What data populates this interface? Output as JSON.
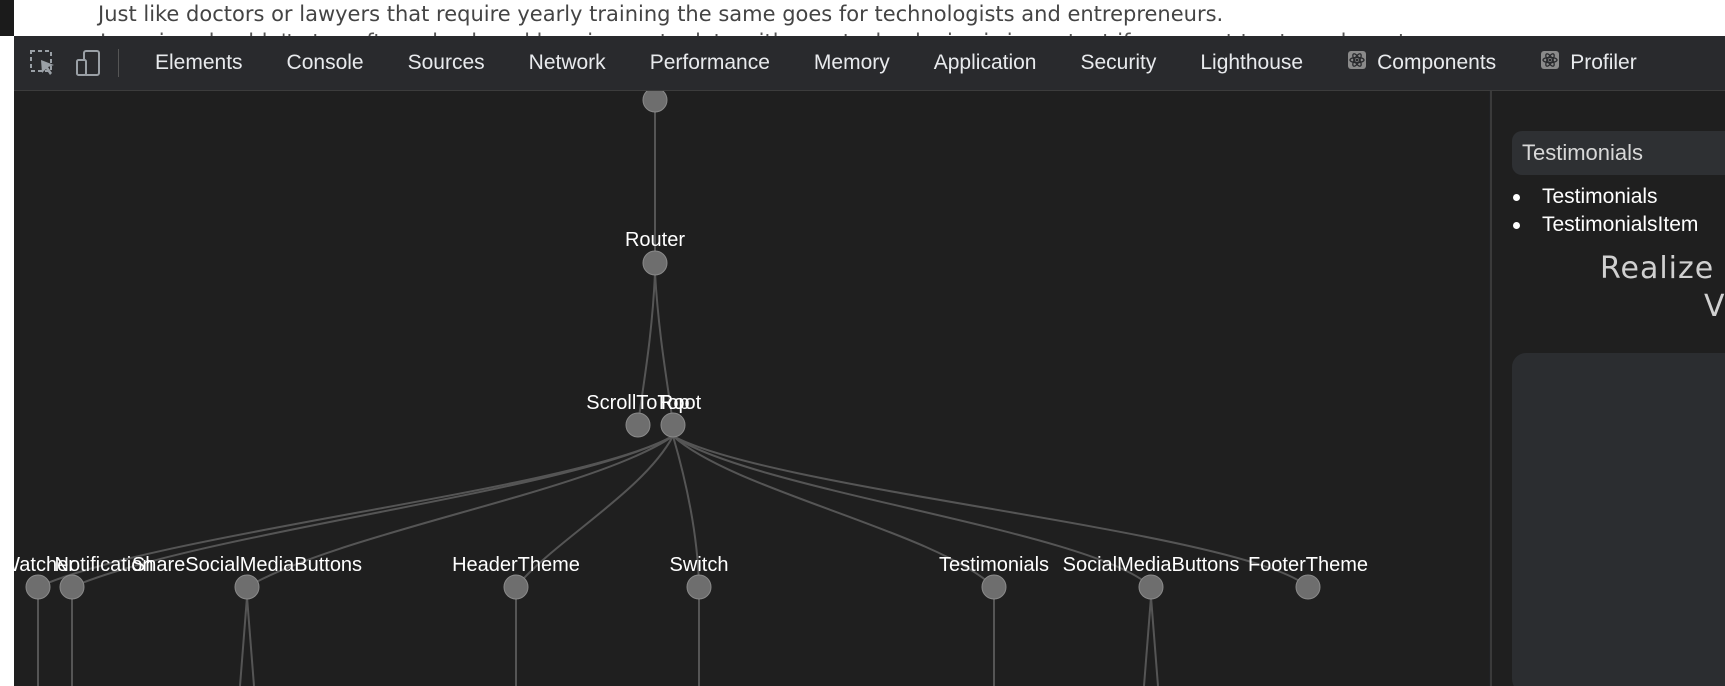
{
  "page": {
    "paragraph": "Just like doctors or lawyers that require yearly training the same goes for technologists and entrepreneurs.",
    "paragraph_next": "Learning shouldn't stop after school, and keeping up to date with new technologies is important if you want to stay relevant."
  },
  "toolbar": {
    "inspect_icon": "inspect-element-icon",
    "device_icon": "device-toggle-icon",
    "tabs": [
      {
        "label": "Elements"
      },
      {
        "label": "Console"
      },
      {
        "label": "Sources"
      },
      {
        "label": "Network"
      },
      {
        "label": "Performance"
      },
      {
        "label": "Memory"
      },
      {
        "label": "Application"
      },
      {
        "label": "Security"
      },
      {
        "label": "Lighthouse"
      },
      {
        "label": "Components",
        "icon": "react-icon"
      },
      {
        "label": "Profiler",
        "icon": "react-icon"
      }
    ]
  },
  "graph": {
    "nodes": [
      {
        "id": "top",
        "label": ""
      },
      {
        "id": "router",
        "label": "Router"
      },
      {
        "id": "scrolltotop",
        "label": "ScrollToTop"
      },
      {
        "id": "root",
        "label": "Root"
      },
      {
        "id": "watcher",
        "label": "Watcher"
      },
      {
        "id": "notification",
        "label": "Notification"
      },
      {
        "id": "share",
        "label": "ShareSocialMediaButtons"
      },
      {
        "id": "headertheme",
        "label": "HeaderTheme"
      },
      {
        "id": "switch",
        "label": "Switch"
      },
      {
        "id": "testimonials",
        "label": "Testimonials"
      },
      {
        "id": "socialmedia",
        "label": "SocialMediaButtons"
      },
      {
        "id": "footertheme",
        "label": "FooterTheme"
      }
    ],
    "label_visible_partial": {
      "scroll_root_overlap": "ScrollToTop Root",
      "edge_left": "Watcher Notification"
    }
  },
  "sidebar": {
    "search_value": "Testimonials",
    "items": [
      {
        "label": "Testimonials"
      },
      {
        "label": "TestimonialsItem"
      }
    ],
    "heading_line1": "Realize",
    "heading_line2": "V"
  },
  "colors": {
    "devtools_bg": "#202124",
    "toolbar_bg": "#292a2d",
    "node_fill": "#6e6e6e",
    "edge": "#555555"
  }
}
